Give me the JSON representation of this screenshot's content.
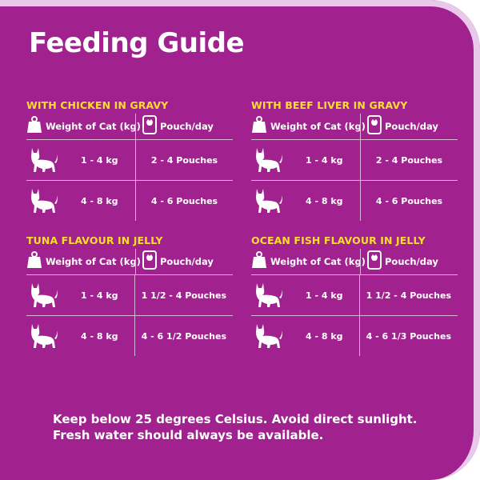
{
  "title": "Feeding Guide",
  "colors": {
    "background": "#a1228f",
    "accent": "#ffde2a",
    "border": "#e9c9ea",
    "text": "#ffffff"
  },
  "header": {
    "weight_label": "Weight of Cat (kg)",
    "pouch_label": "Pouch/day",
    "weight_icon": "scale-icon",
    "pouch_icon": "pouch-icon"
  },
  "sections": [
    {
      "title": "WITH CHICKEN IN GRAVY",
      "rows": [
        {
          "weight": "1 - 4 kg",
          "amount": "2 - 4 Pouches",
          "icon": "cat-icon"
        },
        {
          "weight": "4 - 8 kg",
          "amount": "4 - 6 Pouches",
          "icon": "cat-icon"
        }
      ]
    },
    {
      "title": "WITH BEEF LIVER IN GRAVY",
      "rows": [
        {
          "weight": "1 - 4 kg",
          "amount": "2 - 4 Pouches",
          "icon": "cat-icon"
        },
        {
          "weight": "4 - 8 kg",
          "amount": "4 - 6 Pouches",
          "icon": "cat-icon"
        }
      ]
    },
    {
      "title": "TUNA FLAVOUR IN JELLY",
      "rows": [
        {
          "weight": "1 - 4 kg",
          "amount": "1 1/2 - 4 Pouches",
          "icon": "cat-icon"
        },
        {
          "weight": "4 - 8 kg",
          "amount": "4 - 6 1/2 Pouches",
          "icon": "cat-icon"
        }
      ]
    },
    {
      "title": "OCEAN FISH FLAVOUR IN JELLY",
      "rows": [
        {
          "weight": "1 - 4 kg",
          "amount": "1 1/2 - 4 Pouches",
          "icon": "cat-icon"
        },
        {
          "weight": "4 - 8 kg",
          "amount": "4 - 6 1/3 Pouches",
          "icon": "cat-icon"
        }
      ]
    }
  ],
  "footer": {
    "line1": "Keep below 25 degrees Celsius.  Avoid direct sunlight.",
    "line2": "Fresh water should always be available."
  }
}
